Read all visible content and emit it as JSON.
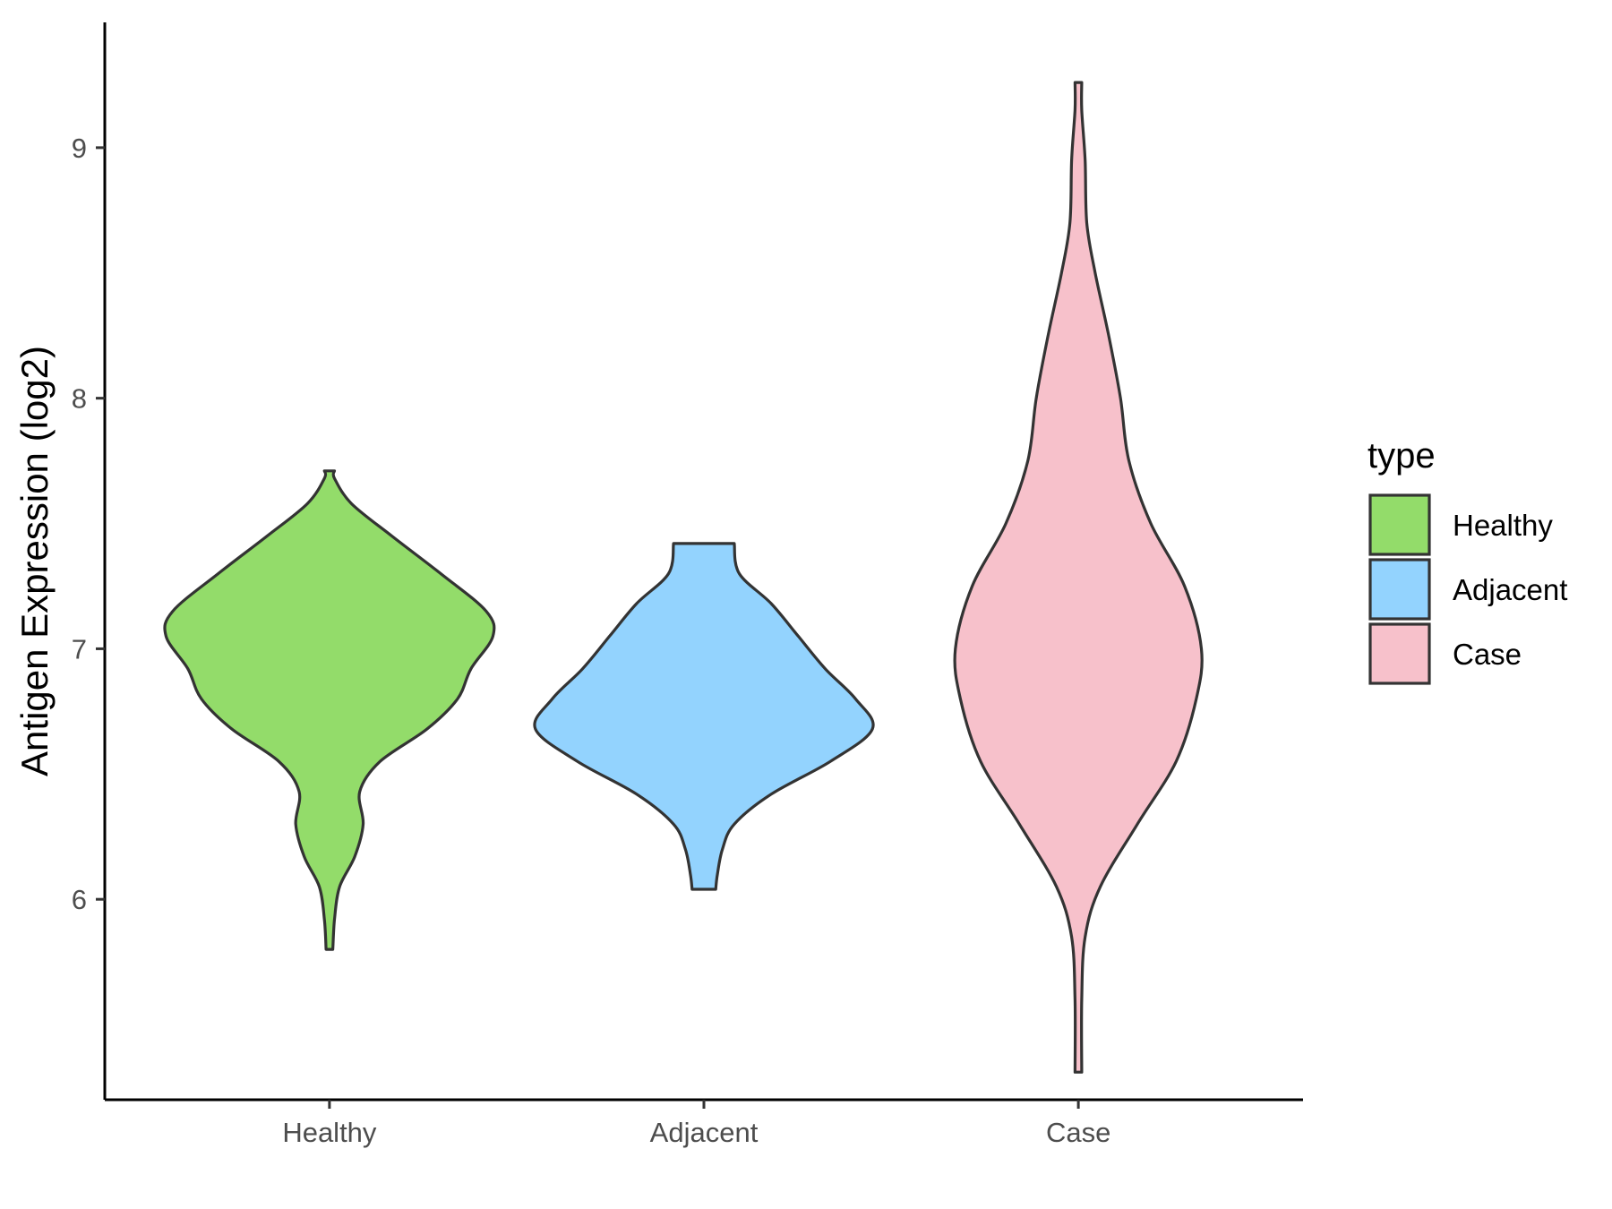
{
  "chart_data": {
    "type": "violin",
    "xlabel": "",
    "ylabel": "Antigen Expression (log2)",
    "categories": [
      "Healthy",
      "Adjacent",
      "Case"
    ],
    "ylim": [
      5.2,
      9.5
    ],
    "yticks": [
      6,
      7,
      8,
      9
    ],
    "legend": {
      "title": "type",
      "position": "right",
      "entries": [
        "Healthy",
        "Adjacent",
        "Case"
      ]
    },
    "grid": false,
    "series": [
      {
        "name": "Healthy",
        "color": "#93DC6A",
        "min": 5.8,
        "max": 7.71,
        "density": [
          [
            5.8,
            0.02
          ],
          [
            5.92,
            0.03
          ],
          [
            6.05,
            0.06
          ],
          [
            6.17,
            0.15
          ],
          [
            6.3,
            0.2
          ],
          [
            6.43,
            0.18
          ],
          [
            6.55,
            0.3
          ],
          [
            6.68,
            0.58
          ],
          [
            6.8,
            0.76
          ],
          [
            6.92,
            0.84
          ],
          [
            7.05,
            0.97
          ],
          [
            7.15,
            0.93
          ],
          [
            7.3,
            0.66
          ],
          [
            7.45,
            0.37
          ],
          [
            7.58,
            0.13
          ],
          [
            7.68,
            0.03
          ],
          [
            7.71,
            0.03
          ]
        ]
      },
      {
        "name": "Adjacent",
        "color": "#93D3FE",
        "min": 6.04,
        "max": 7.42,
        "density": [
          [
            6.04,
            0.07
          ],
          [
            6.1,
            0.08
          ],
          [
            6.2,
            0.11
          ],
          [
            6.3,
            0.18
          ],
          [
            6.42,
            0.4
          ],
          [
            6.55,
            0.75
          ],
          [
            6.68,
            1.0
          ],
          [
            6.8,
            0.9
          ],
          [
            6.92,
            0.72
          ],
          [
            7.05,
            0.56
          ],
          [
            7.18,
            0.4
          ],
          [
            7.3,
            0.21
          ],
          [
            7.42,
            0.18
          ]
        ]
      },
      {
        "name": "Case",
        "color": "#F7C1CB",
        "min": 5.31,
        "max": 9.26,
        "density": [
          [
            5.31,
            0.02
          ],
          [
            5.6,
            0.02
          ],
          [
            5.85,
            0.04
          ],
          [
            6.05,
            0.13
          ],
          [
            6.3,
            0.35
          ],
          [
            6.55,
            0.58
          ],
          [
            6.8,
            0.7
          ],
          [
            7.0,
            0.73
          ],
          [
            7.25,
            0.63
          ],
          [
            7.5,
            0.43
          ],
          [
            7.75,
            0.3
          ],
          [
            8.0,
            0.25
          ],
          [
            8.25,
            0.18
          ],
          [
            8.5,
            0.1
          ],
          [
            8.7,
            0.05
          ],
          [
            8.95,
            0.04
          ],
          [
            9.15,
            0.02
          ],
          [
            9.26,
            0.02
          ]
        ]
      }
    ]
  }
}
